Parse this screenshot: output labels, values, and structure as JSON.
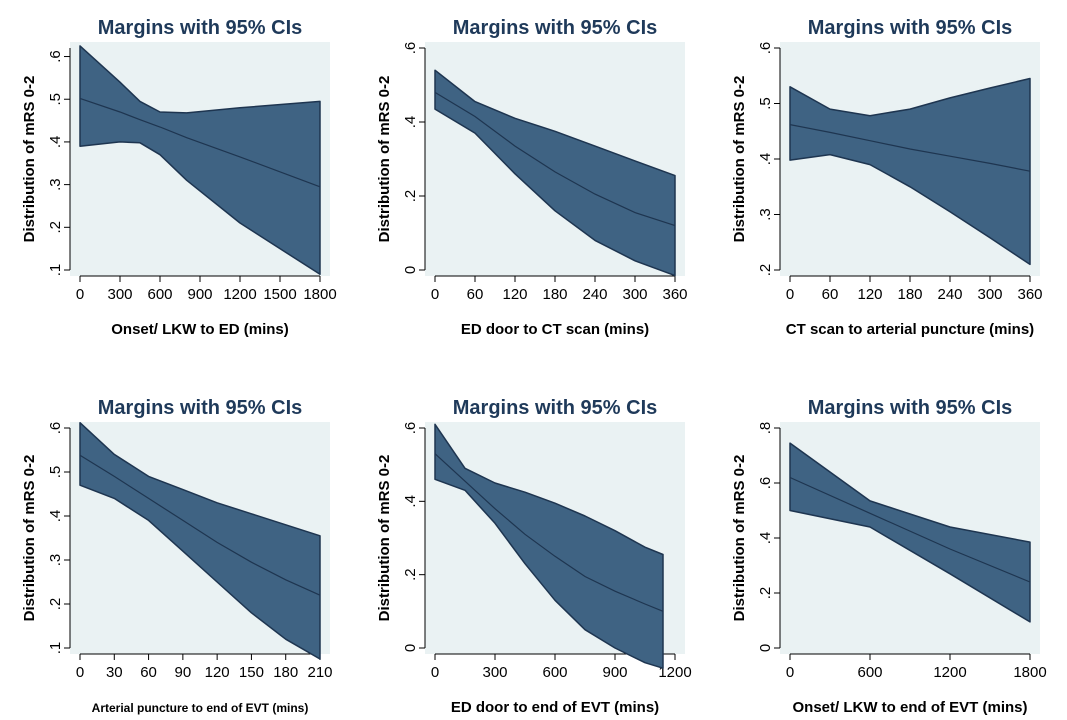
{
  "chart_data": [
    {
      "type": "area",
      "title": "Margins with 95% CIs",
      "xlabel": "Onset/ LKW to ED (mins)",
      "ylabel": "Distribution of mRS 0-2",
      "xlim": [
        0,
        1800
      ],
      "ylim": [
        0.1,
        0.62
      ],
      "xticks": [
        0,
        300,
        600,
        900,
        1200,
        1500,
        1800
      ],
      "xtick_labels": [
        "0",
        "300",
        "600",
        "900",
        "1200",
        "1500",
        "1800"
      ],
      "yticks": [
        0.1,
        0.2,
        0.3,
        0.4,
        0.5,
        0.6
      ],
      "ytick_labels": [
        ".1",
        ".2",
        ".3",
        ".4",
        ".5",
        ".6"
      ],
      "x": [
        0,
        300,
        450,
        600,
        800,
        1200,
        1800
      ],
      "fit": [
        0.502,
        0.47,
        0.452,
        0.435,
        0.41,
        0.365,
        0.295
      ],
      "lower": [
        0.39,
        0.4,
        0.398,
        0.37,
        0.31,
        0.21,
        0.09
      ],
      "upper": [
        0.625,
        0.54,
        0.495,
        0.47,
        0.468,
        0.48,
        0.495
      ]
    },
    {
      "type": "area",
      "title": "Margins with 95% CIs",
      "xlabel": "ED door to CT scan (mins)",
      "ylabel": "Distribution of mRS 0-2",
      "xlim": [
        0,
        360
      ],
      "ylim": [
        0,
        0.6
      ],
      "xticks": [
        0,
        60,
        120,
        180,
        240,
        300,
        360
      ],
      "xtick_labels": [
        "0",
        "60",
        "120",
        "180",
        "240",
        "300",
        "360"
      ],
      "yticks": [
        0,
        0.2,
        0.4,
        0.6
      ],
      "ytick_labels": [
        "0",
        ".2",
        ".4",
        ".6"
      ],
      "x": [
        0,
        60,
        120,
        180,
        240,
        300,
        360
      ],
      "fit": [
        0.48,
        0.415,
        0.335,
        0.265,
        0.205,
        0.155,
        0.12
      ],
      "lower": [
        0.435,
        0.37,
        0.26,
        0.16,
        0.08,
        0.025,
        -0.015
      ],
      "upper": [
        0.54,
        0.455,
        0.41,
        0.375,
        0.335,
        0.295,
        0.255
      ]
    },
    {
      "type": "area",
      "title": "Margins with 95% CIs",
      "xlabel": "CT scan to arterial puncture (mins)",
      "ylabel": "Distribution of mRS 0-2",
      "xlim": [
        0,
        360
      ],
      "ylim": [
        0.2,
        0.6
      ],
      "xticks": [
        0,
        60,
        120,
        180,
        240,
        300,
        360
      ],
      "xtick_labels": [
        "0",
        "60",
        "120",
        "180",
        "240",
        "300",
        "360"
      ],
      "yticks": [
        0.2,
        0.3,
        0.4,
        0.5,
        0.6
      ],
      "ytick_labels": [
        ".2",
        ".3",
        ".4",
        ".5",
        ".6"
      ],
      "x": [
        0,
        60,
        120,
        180,
        240,
        300,
        360
      ],
      "fit": [
        0.462,
        0.448,
        0.433,
        0.418,
        0.405,
        0.392,
        0.378
      ],
      "lower": [
        0.398,
        0.408,
        0.39,
        0.35,
        0.305,
        0.258,
        0.21
      ],
      "upper": [
        0.53,
        0.49,
        0.478,
        0.49,
        0.51,
        0.528,
        0.545
      ]
    },
    {
      "type": "area",
      "title": "Margins with 95% CIs",
      "xlabel": "Arterial puncture to end of EVT (mins)",
      "ylabel": "Distribution of mRS 0-2",
      "xlim": [
        0,
        210
      ],
      "ylim": [
        0.1,
        0.6
      ],
      "xticks": [
        0,
        30,
        60,
        90,
        120,
        150,
        180,
        210
      ],
      "xtick_labels": [
        "0",
        "30",
        "60",
        "90",
        "120",
        "150",
        "180",
        "210"
      ],
      "yticks": [
        0.1,
        0.2,
        0.3,
        0.4,
        0.5,
        0.6
      ],
      "ytick_labels": [
        ".1",
        ".2",
        ".3",
        ".4",
        ".5",
        ".6"
      ],
      "x": [
        0,
        30,
        60,
        90,
        120,
        150,
        180,
        210
      ],
      "fit": [
        0.538,
        0.49,
        0.44,
        0.39,
        0.34,
        0.295,
        0.255,
        0.22
      ],
      "lower": [
        0.47,
        0.44,
        0.39,
        0.32,
        0.25,
        0.18,
        0.12,
        0.075
      ],
      "upper": [
        0.612,
        0.54,
        0.49,
        0.46,
        0.43,
        0.405,
        0.38,
        0.355
      ]
    },
    {
      "type": "area",
      "title": "Margins with 95% CIs",
      "xlabel": "ED door to end of EVT (mins)",
      "ylabel": "Distribution of mRS 0-2",
      "xlim": [
        0,
        1200
      ],
      "ylim": [
        0,
        0.6
      ],
      "xticks": [
        0,
        300,
        600,
        900,
        1200
      ],
      "xtick_labels": [
        "0",
        "300",
        "600",
        "900",
        "1200"
      ],
      "yticks": [
        0,
        0.2,
        0.4,
        0.6
      ],
      "ytick_labels": [
        "0",
        ".2",
        ".4",
        ".6"
      ],
      "x": [
        0,
        150,
        300,
        450,
        600,
        750,
        900,
        1050,
        1140
      ],
      "fit": [
        0.53,
        0.455,
        0.38,
        0.31,
        0.25,
        0.195,
        0.155,
        0.12,
        0.1
      ],
      "lower": [
        0.46,
        0.43,
        0.34,
        0.23,
        0.13,
        0.05,
        0.0,
        -0.04,
        -0.055
      ],
      "upper": [
        0.61,
        0.49,
        0.45,
        0.425,
        0.395,
        0.36,
        0.32,
        0.275,
        0.255
      ]
    },
    {
      "type": "area",
      "title": "Margins with 95% CIs",
      "xlabel": "Onset/ LKW to end of EVT (mins)",
      "ylabel": "Distribution of mRS 0-2",
      "xlim": [
        0,
        1800
      ],
      "ylim": [
        0,
        0.8
      ],
      "xticks": [
        0,
        600,
        1200,
        1800
      ],
      "xtick_labels": [
        "0",
        "600",
        "1200",
        "1800"
      ],
      "yticks": [
        0,
        0.2,
        0.4,
        0.6,
        0.8
      ],
      "ytick_labels": [
        "0",
        ".2",
        ".4",
        ".6",
        ".8"
      ],
      "x": [
        0,
        600,
        1200,
        1800
      ],
      "fit": [
        0.62,
        0.49,
        0.36,
        0.24
      ],
      "lower": [
        0.5,
        0.44,
        0.27,
        0.095
      ],
      "upper": [
        0.745,
        0.535,
        0.44,
        0.385
      ]
    }
  ],
  "colors": {
    "band_fill": "#3f6383",
    "band_stroke": "#1e3550",
    "fit_line": "#1e3550",
    "plot_bg": "#eaf2f3",
    "title": "#1f3a5a"
  }
}
